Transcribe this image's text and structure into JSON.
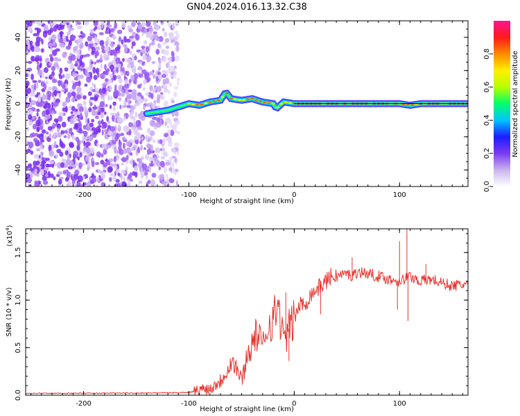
{
  "title": "GN04.2024.016.13.32.C38",
  "chart_data": [
    {
      "type": "heatmap",
      "name": "spectrogram",
      "xlabel": "Height of straight line (km)",
      "ylabel": "Frequency (Hz)",
      "xlim": [
        -255,
        165
      ],
      "ylim": [
        -50,
        50
      ],
      "xticks": [
        -200,
        -100,
        0,
        100
      ],
      "yticks": [
        -40,
        -20,
        0,
        20,
        40
      ],
      "colorbar": {
        "label": "Normalized spectral amplitude",
        "range": [
          0.0,
          1.0
        ],
        "ticks": [
          "0.0",
          "0.2",
          "0.4",
          "0.6",
          "0.8"
        ],
        "colors": [
          "#ffffff",
          "#c9b3ee",
          "#7a3bf0",
          "#1d1dff",
          "#00c4ff",
          "#00ff6a",
          "#b7ff00",
          "#ffef00",
          "#ff8a00",
          "#ff1a1a",
          "#ff1493"
        ]
      },
      "noise_region_km": [
        -255,
        -110
      ],
      "signal_trace": {
        "x": [
          -140,
          -130,
          -120,
          -110,
          -100,
          -90,
          -80,
          -70,
          -65,
          -60,
          -50,
          -40,
          -30,
          -20,
          -17,
          -10,
          0,
          20,
          40,
          60,
          80,
          90,
          95,
          100,
          110,
          120,
          140,
          165
        ],
        "y": [
          -6,
          -5,
          -4,
          -2,
          0,
          -1,
          1,
          2,
          7,
          3,
          2,
          3,
          1,
          0,
          -3,
          1,
          0,
          0,
          0,
          0,
          0,
          0,
          0,
          0,
          -1,
          0,
          0,
          0
        ]
      }
    },
    {
      "type": "line",
      "name": "snr",
      "xlabel": "Height of straight line (km)",
      "ylabel": "SNR (10 * v/v)",
      "scale_note": "(x10",
      "scale_exponent": "4",
      "xlim": [
        -255,
        165
      ],
      "ylim": [
        0,
        1.75
      ],
      "xticks": [
        -200,
        -100,
        0,
        100
      ],
      "yticks": [
        "0.0",
        "0.5",
        "1.0",
        "1.5"
      ],
      "series": [
        {
          "name": "SNR",
          "color": "#e8312a",
          "x": [
            -255,
            -200,
            -120,
            -100,
            -90,
            -85,
            -80,
            -75,
            -70,
            -65,
            -60,
            -55,
            -50,
            -45,
            -40,
            -35,
            -30,
            -25,
            -20,
            -15,
            -10,
            -5,
            0,
            5,
            10,
            15,
            20,
            25,
            30,
            35,
            40,
            45,
            50,
            55,
            60,
            70,
            80,
            90,
            100,
            110,
            120,
            130,
            140,
            150,
            165
          ],
          "y": [
            0.02,
            0.02,
            0.025,
            0.03,
            0.05,
            0.08,
            0.06,
            0.12,
            0.15,
            0.25,
            0.35,
            0.3,
            0.15,
            0.4,
            0.55,
            0.65,
            0.5,
            0.75,
            0.8,
            0.95,
            0.55,
            0.7,
            0.8,
            0.95,
            0.95,
            1.05,
            1.1,
            1.15,
            1.2,
            1.25,
            1.25,
            1.27,
            1.28,
            1.25,
            1.3,
            1.28,
            1.25,
            1.22,
            1.2,
            1.25,
            1.2,
            1.22,
            1.18,
            1.15,
            1.17
          ]
        }
      ],
      "spikes": [
        {
          "x": 100,
          "y": 1.62
        },
        {
          "x": 107,
          "y": 1.75
        },
        {
          "x": 108,
          "y": 0.78
        },
        {
          "x": 55,
          "y": 1.45
        },
        {
          "x": -8,
          "y": 1.08
        },
        {
          "x": -5,
          "y": 0.36
        },
        {
          "x": 25,
          "y": 0.85
        },
        {
          "x": 98,
          "y": 0.9
        },
        {
          "x": 125,
          "y": 1.38
        }
      ]
    }
  ]
}
